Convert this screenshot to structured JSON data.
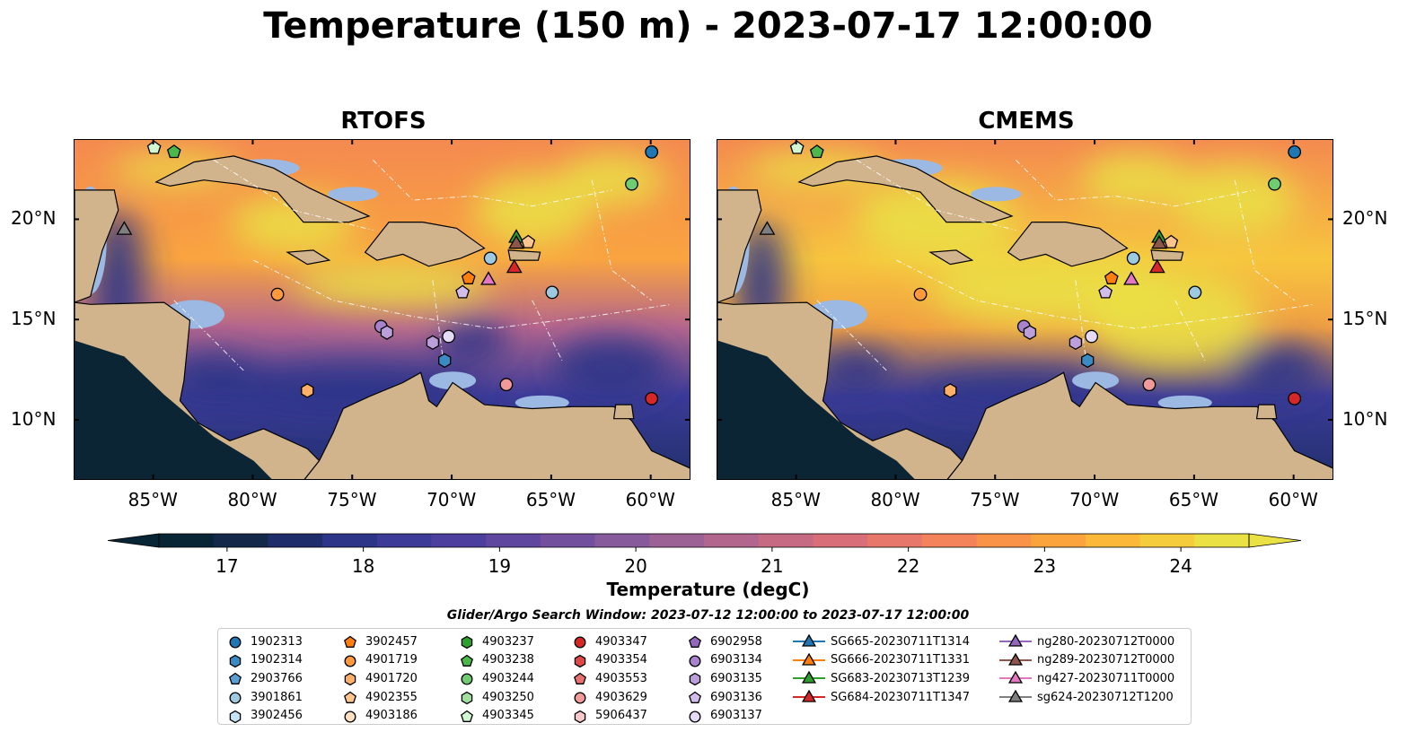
{
  "title": "Temperature (150 m) - 2023-07-17 12:00:00",
  "panels": [
    {
      "title": "RTOFS",
      "warm": 0.45
    },
    {
      "title": "CMEMS",
      "warm": 0.75
    }
  ],
  "map_extent": {
    "lon": [
      -89,
      -58
    ],
    "lat": [
      7,
      24
    ]
  },
  "lon_ticks": [
    "85°W",
    "80°W",
    "75°W",
    "70°W",
    "65°W",
    "60°W"
  ],
  "lat_ticks": [
    "20°N",
    "15°N",
    "10°N"
  ],
  "land_color": "#d2b48c",
  "shallow_color": "#9bb9e3",
  "colorbar": {
    "label": "Temperature (degC)",
    "ticks": [
      "17",
      "18",
      "19",
      "20",
      "21",
      "22",
      "23",
      "24"
    ],
    "min": 16.5,
    "max": 24.5,
    "colors": [
      "#082535",
      "#14284a",
      "#1f2d6a",
      "#2c3587",
      "#3c3b98",
      "#4d3f9e",
      "#5f479f",
      "#73509e",
      "#875a9b",
      "#9c6195",
      "#b2668e",
      "#c66a84",
      "#d86f78",
      "#e8776b",
      "#f4825b",
      "#fa9248",
      "#fba43d",
      "#fbb839",
      "#f5cc3c",
      "#eae245"
    ]
  },
  "legend": {
    "title": "Glider/Argo Search Window: 2023-07-12 12:00:00 to 2023-07-17 12:00:00",
    "columns": [
      [
        {
          "label": "1902313",
          "shape": "circle",
          "color": "#1f77b4"
        },
        {
          "label": "1902314",
          "shape": "hexagon",
          "color": "#3a8ac4"
        },
        {
          "label": "2903766",
          "shape": "pentagon",
          "color": "#5a9fd4"
        },
        {
          "label": "3901861",
          "shape": "circle",
          "color": "#9ecae1"
        },
        {
          "label": "3902456",
          "shape": "hexagon",
          "color": "#c6e2f5"
        }
      ],
      [
        {
          "label": "3902457",
          "shape": "pentagon",
          "color": "#ff7f0e"
        },
        {
          "label": "4901719",
          "shape": "circle",
          "color": "#ff9a3c"
        },
        {
          "label": "4901720",
          "shape": "hexagon",
          "color": "#ffb066"
        },
        {
          "label": "4902355",
          "shape": "pentagon",
          "color": "#ffc58e"
        },
        {
          "label": "4903186",
          "shape": "circle",
          "color": "#ffe0c0"
        }
      ],
      [
        {
          "label": "4903237",
          "shape": "hexagon",
          "color": "#2ca02c"
        },
        {
          "label": "4903238",
          "shape": "pentagon",
          "color": "#4cb84c"
        },
        {
          "label": "4903244",
          "shape": "circle",
          "color": "#70cc70"
        },
        {
          "label": "4903250",
          "shape": "hexagon",
          "color": "#a1e0a1"
        },
        {
          "label": "4903345",
          "shape": "pentagon",
          "color": "#d2f5d2"
        }
      ],
      [
        {
          "label": "4903347",
          "shape": "circle",
          "color": "#d62728"
        },
        {
          "label": "4903354",
          "shape": "hexagon",
          "color": "#e04848"
        },
        {
          "label": "4903553",
          "shape": "pentagon",
          "color": "#ea7070"
        },
        {
          "label": "4903629",
          "shape": "circle",
          "color": "#f29a9a"
        },
        {
          "label": "5906437",
          "shape": "hexagon",
          "color": "#fac8c8"
        }
      ],
      [
        {
          "label": "6902958",
          "shape": "pentagon",
          "color": "#9467bd"
        },
        {
          "label": "6903134",
          "shape": "circle",
          "color": "#a882cc"
        },
        {
          "label": "6903135",
          "shape": "hexagon",
          "color": "#bc9edb"
        },
        {
          "label": "6903136",
          "shape": "pentagon",
          "color": "#d2bdea"
        },
        {
          "label": "6903137",
          "shape": "circle",
          "color": "#e6dbf6"
        }
      ],
      [
        {
          "label": "SG665-20230711T1314",
          "shape": "triangle",
          "color": "#1f77b4",
          "line": true
        },
        {
          "label": "SG666-20230711T1331",
          "shape": "triangle",
          "color": "#ff7f0e",
          "line": true
        },
        {
          "label": "SG683-20230713T1239",
          "shape": "triangle",
          "color": "#2ca02c",
          "line": true
        },
        {
          "label": "SG684-20230711T1347",
          "shape": "triangle",
          "color": "#d62728",
          "line": true
        }
      ],
      [
        {
          "label": "ng280-20230712T0000",
          "shape": "triangle",
          "color": "#9467bd",
          "line": true
        },
        {
          "label": "ng289-20230712T0000",
          "shape": "triangle",
          "color": "#8c564b",
          "line": true
        },
        {
          "label": "ng427-20230711T0000",
          "shape": "triangle",
          "color": "#e377c2",
          "line": true
        },
        {
          "label": "sg624-20230712T1200",
          "shape": "triangle",
          "color": "#7f7f7f",
          "line": true
        }
      ]
    ]
  },
  "markers": [
    {
      "id": "1902313",
      "lon": -60.0,
      "lat": 23.4,
      "shape": "circle",
      "color": "#1f77b4"
    },
    {
      "id": "4903244",
      "lon": -61.0,
      "lat": 21.8,
      "shape": "circle",
      "color": "#70cc70"
    },
    {
      "id": "4903238",
      "lon": -84.0,
      "lat": 23.4,
      "shape": "pentagon",
      "color": "#4cb84c"
    },
    {
      "id": "4903345",
      "lon": -85.0,
      "lat": 23.6,
      "shape": "pentagon",
      "color": "#d2f5d2"
    },
    {
      "id": "sg624-20230712T1200",
      "lon": -86.5,
      "lat": 19.5,
      "shape": "triangle",
      "color": "#7f7f7f"
    },
    {
      "id": "4901719",
      "lon": -78.8,
      "lat": 16.3,
      "shape": "circle",
      "color": "#ff9a3c"
    },
    {
      "id": "3902457",
      "lon": -69.2,
      "lat": 17.1,
      "shape": "pentagon",
      "color": "#ff7f0e"
    },
    {
      "id": "6903136",
      "lon": -69.5,
      "lat": 16.4,
      "shape": "pentagon",
      "color": "#d2bdea"
    },
    {
      "id": "ng427-20230711T0000",
      "lon": -68.2,
      "lat": 17.0,
      "shape": "triangle",
      "color": "#e377c2"
    },
    {
      "id": "3901861",
      "lon": -68.1,
      "lat": 18.1,
      "shape": "circle",
      "color": "#9ecae1"
    },
    {
      "id": "SG683-20230713T1239",
      "lon": -66.8,
      "lat": 19.1,
      "shape": "triangle",
      "color": "#2ca02c"
    },
    {
      "id": "ng289-20230712T0000",
      "lon": -66.8,
      "lat": 18.8,
      "shape": "triangle",
      "color": "#8c564b"
    },
    {
      "id": "4902355",
      "lon": -66.2,
      "lat": 18.9,
      "shape": "pentagon",
      "color": "#ffc58e"
    },
    {
      "id": "SG684-20230711T1347",
      "lon": -66.9,
      "lat": 17.6,
      "shape": "triangle",
      "color": "#d62728"
    },
    {
      "id": "3901861b",
      "lon": -65.0,
      "lat": 16.4,
      "shape": "circle",
      "color": "#9ecae1"
    },
    {
      "id": "6903134",
      "lon": -73.6,
      "lat": 14.7,
      "shape": "circle",
      "color": "#a882cc"
    },
    {
      "id": "6903135",
      "lon": -73.3,
      "lat": 14.4,
      "shape": "hexagon",
      "color": "#bc9edb"
    },
    {
      "id": "6903135b",
      "lon": -71.0,
      "lat": 13.9,
      "shape": "hexagon",
      "color": "#bc9edb"
    },
    {
      "id": "6903137",
      "lon": -70.2,
      "lat": 14.2,
      "shape": "circle",
      "color": "#e6dbf6"
    },
    {
      "id": "1902314",
      "lon": -70.4,
      "lat": 13.0,
      "shape": "hexagon",
      "color": "#3a8ac4"
    },
    {
      "id": "4901720",
      "lon": -77.3,
      "lat": 11.5,
      "shape": "hexagon",
      "color": "#ffb066"
    },
    {
      "id": "4903629",
      "lon": -67.3,
      "lat": 11.8,
      "shape": "circle",
      "color": "#f29a9a"
    },
    {
      "id": "4903347",
      "lon": -60.0,
      "lat": 11.1,
      "shape": "circle",
      "color": "#d62728"
    }
  ]
}
